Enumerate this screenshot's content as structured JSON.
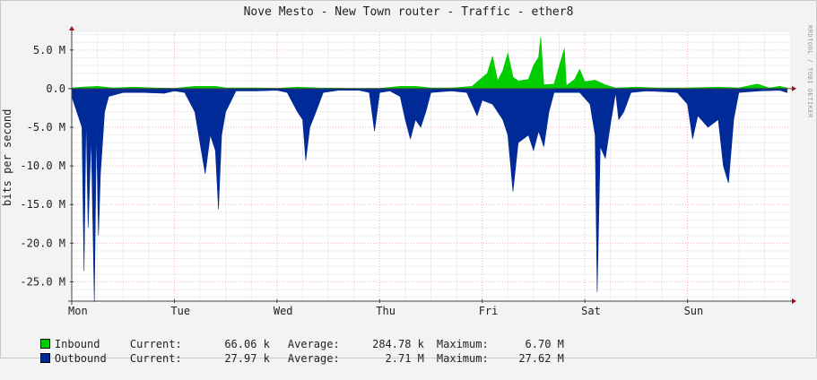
{
  "title": "Nove Mesto - New Town router - Traffic - ether8",
  "watermark": "RRDTOOL / TOBI OETIKER",
  "legend": [
    {
      "name": "Inbound",
      "color": "#00cc00",
      "current_label": "Current:",
      "current": "66.06 k",
      "average_label": "Average:",
      "average": "284.78 k",
      "maximum_label": "Maximum:",
      "maximum": "6.70 M"
    },
    {
      "name": "Outbound",
      "color": "#002a97",
      "current_label": "Current:",
      "current": "27.97 k",
      "average_label": "Average:",
      "average": "2.71 M",
      "maximum_label": "Maximum:",
      "maximum": "27.62 M"
    }
  ],
  "chart_data": {
    "type": "area",
    "title": "Nove Mesto - New Town router - Traffic - ether8",
    "xlabel": "",
    "ylabel": "bits per second",
    "x_unit": "day",
    "x_range": [
      0,
      7
    ],
    "x_ticks": [
      {
        "value": 0,
        "label": "Mon"
      },
      {
        "value": 1,
        "label": "Tue"
      },
      {
        "value": 2,
        "label": "Wed"
      },
      {
        "value": 3,
        "label": "Thu"
      },
      {
        "value": 4,
        "label": "Fri"
      },
      {
        "value": 5,
        "label": "Sat"
      },
      {
        "value": 6,
        "label": "Sun"
      }
    ],
    "y_unit": "M",
    "ylim": [
      -27.5,
      7.3
    ],
    "y_ticks": [
      {
        "value": 5,
        "label": "5.0 M"
      },
      {
        "value": 0,
        "label": "0.0"
      },
      {
        "value": -5,
        "label": "-5.0 M"
      },
      {
        "value": -10,
        "label": "-10.0 M"
      },
      {
        "value": -15,
        "label": "-15.0 M"
      },
      {
        "value": -20,
        "label": "-20.0 M"
      },
      {
        "value": -25,
        "label": "-25.0 M"
      }
    ],
    "grid": true,
    "series": [
      {
        "name": "Inbound",
        "color": "#00cc00",
        "points": [
          [
            0,
            0.1
          ],
          [
            0.1,
            0.2
          ],
          [
            0.25,
            0.3
          ],
          [
            0.4,
            0.1
          ],
          [
            0.6,
            0.2
          ],
          [
            0.8,
            0.1
          ],
          [
            1.0,
            0.05
          ],
          [
            1.2,
            0.3
          ],
          [
            1.4,
            0.3
          ],
          [
            1.5,
            0.1
          ],
          [
            1.8,
            0.1
          ],
          [
            2.0,
            0.05
          ],
          [
            2.2,
            0.2
          ],
          [
            2.4,
            0.1
          ],
          [
            2.7,
            0.05
          ],
          [
            3.0,
            0.05
          ],
          [
            3.2,
            0.3
          ],
          [
            3.35,
            0.3
          ],
          [
            3.5,
            0.1
          ],
          [
            3.7,
            0.1
          ],
          [
            3.9,
            0.3
          ],
          [
            4.05,
            2.0
          ],
          [
            4.1,
            4.2
          ],
          [
            4.15,
            1.0
          ],
          [
            4.2,
            2.3
          ],
          [
            4.25,
            4.6
          ],
          [
            4.3,
            1.5
          ],
          [
            4.35,
            1.0
          ],
          [
            4.45,
            1.2
          ],
          [
            4.5,
            3.0
          ],
          [
            4.55,
            4.1
          ],
          [
            4.57,
            6.7
          ],
          [
            4.6,
            0.5
          ],
          [
            4.7,
            0.6
          ],
          [
            4.8,
            5.2
          ],
          [
            4.82,
            0.4
          ],
          [
            4.9,
            1.2
          ],
          [
            4.95,
            2.5
          ],
          [
            5.0,
            0.9
          ],
          [
            5.1,
            1.1
          ],
          [
            5.2,
            0.5
          ],
          [
            5.3,
            0.1
          ],
          [
            5.5,
            0.2
          ],
          [
            5.7,
            0.1
          ],
          [
            6.0,
            0.1
          ],
          [
            6.3,
            0.2
          ],
          [
            6.5,
            0.1
          ],
          [
            6.68,
            0.6
          ],
          [
            6.8,
            0.1
          ],
          [
            6.9,
            0.3
          ],
          [
            6.97,
            0.1
          ]
        ]
      },
      {
        "name": "Outbound",
        "color": "#002a97",
        "points": [
          [
            0,
            -1.0
          ],
          [
            0.1,
            -5.0
          ],
          [
            0.12,
            -23.6
          ],
          [
            0.14,
            -3.0
          ],
          [
            0.16,
            -18.0
          ],
          [
            0.19,
            -6.0
          ],
          [
            0.22,
            -27.6
          ],
          [
            0.24,
            -5.0
          ],
          [
            0.26,
            -19.0
          ],
          [
            0.28,
            -11.0
          ],
          [
            0.32,
            -3.0
          ],
          [
            0.36,
            -1.0
          ],
          [
            0.5,
            -0.5
          ],
          [
            0.7,
            -0.5
          ],
          [
            0.9,
            -0.6
          ],
          [
            1.0,
            -0.3
          ],
          [
            1.1,
            -0.5
          ],
          [
            1.2,
            -3.0
          ],
          [
            1.25,
            -7.0
          ],
          [
            1.3,
            -11.0
          ],
          [
            1.35,
            -6.0
          ],
          [
            1.4,
            -8.0
          ],
          [
            1.43,
            -15.6
          ],
          [
            1.46,
            -6.0
          ],
          [
            1.5,
            -3.0
          ],
          [
            1.6,
            -0.3
          ],
          [
            1.8,
            -0.3
          ],
          [
            2.0,
            -0.2
          ],
          [
            2.1,
            -0.5
          ],
          [
            2.2,
            -3.0
          ],
          [
            2.25,
            -4.0
          ],
          [
            2.28,
            -9.3
          ],
          [
            2.32,
            -5.0
          ],
          [
            2.38,
            -3.0
          ],
          [
            2.45,
            -0.5
          ],
          [
            2.6,
            -0.2
          ],
          [
            2.8,
            -0.2
          ],
          [
            2.9,
            -0.5
          ],
          [
            2.95,
            -5.5
          ],
          [
            3.0,
            -0.5
          ],
          [
            3.1,
            -0.3
          ],
          [
            3.2,
            -1.0
          ],
          [
            3.25,
            -4.0
          ],
          [
            3.3,
            -6.5
          ],
          [
            3.35,
            -4.0
          ],
          [
            3.4,
            -5.0
          ],
          [
            3.45,
            -3.0
          ],
          [
            3.5,
            -0.5
          ],
          [
            3.7,
            -0.3
          ],
          [
            3.85,
            -0.5
          ],
          [
            3.95,
            -3.5
          ],
          [
            4.0,
            -1.5
          ],
          [
            4.1,
            -2.0
          ],
          [
            4.2,
            -4.0
          ],
          [
            4.25,
            -6.0
          ],
          [
            4.3,
            -13.3
          ],
          [
            4.35,
            -7.0
          ],
          [
            4.45,
            -6.0
          ],
          [
            4.5,
            -8.0
          ],
          [
            4.55,
            -5.5
          ],
          [
            4.6,
            -7.5
          ],
          [
            4.65,
            -3.0
          ],
          [
            4.7,
            -0.5
          ],
          [
            4.9,
            -0.5
          ],
          [
            4.95,
            -0.5
          ],
          [
            5.05,
            -2.0
          ],
          [
            5.1,
            -6.0
          ],
          [
            5.12,
            -26.3
          ],
          [
            5.15,
            -7.5
          ],
          [
            5.2,
            -9.0
          ],
          [
            5.25,
            -4.5
          ],
          [
            5.3,
            -0.5
          ],
          [
            5.33,
            -4.0
          ],
          [
            5.38,
            -3.0
          ],
          [
            5.45,
            -0.5
          ],
          [
            5.6,
            -0.3
          ],
          [
            5.8,
            -0.4
          ],
          [
            5.9,
            -0.5
          ],
          [
            6.0,
            -2.0
          ],
          [
            6.05,
            -6.5
          ],
          [
            6.1,
            -3.5
          ],
          [
            6.2,
            -5.0
          ],
          [
            6.3,
            -4.0
          ],
          [
            6.35,
            -10.0
          ],
          [
            6.4,
            -12.2
          ],
          [
            6.45,
            -4.0
          ],
          [
            6.5,
            -0.5
          ],
          [
            6.7,
            -0.3
          ],
          [
            6.9,
            -0.2
          ],
          [
            6.97,
            -0.5
          ]
        ]
      }
    ]
  }
}
